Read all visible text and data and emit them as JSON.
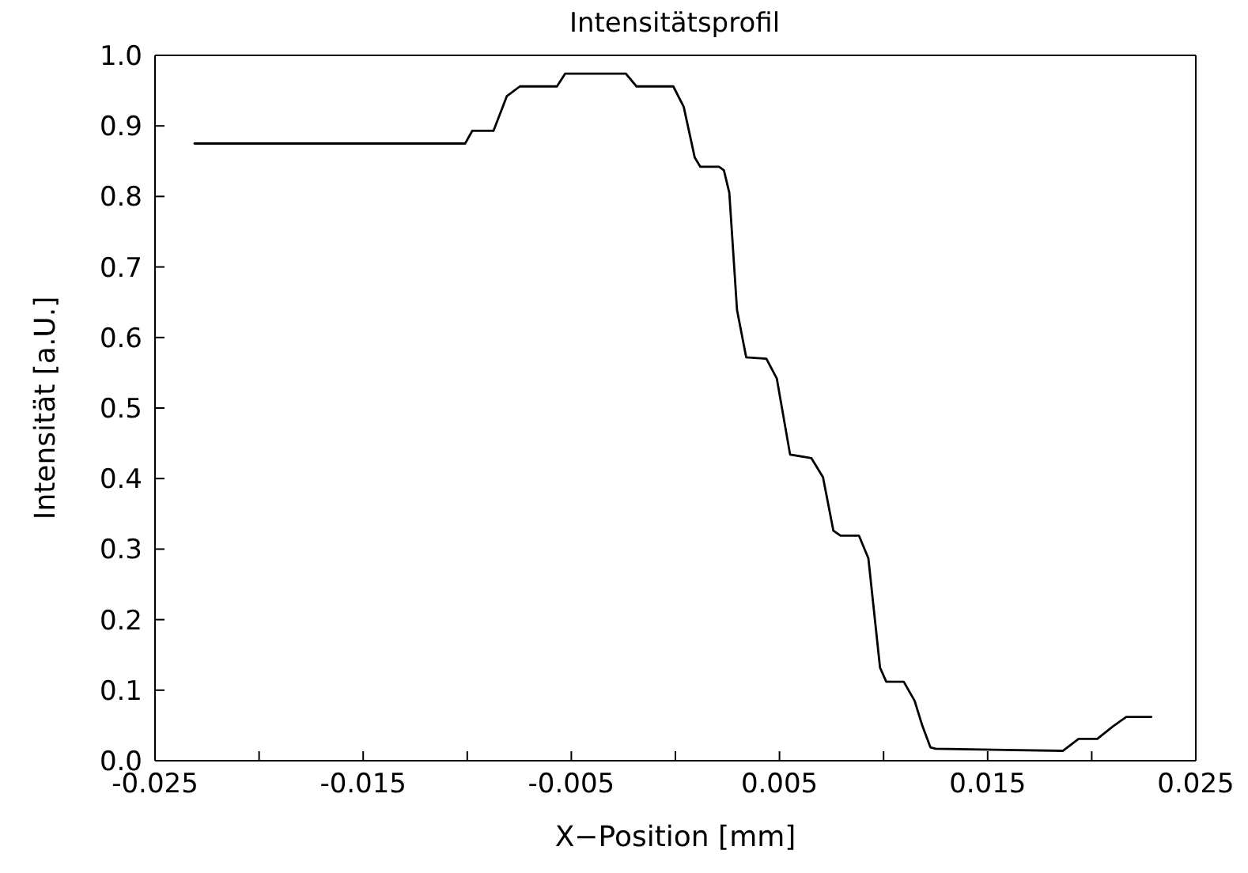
{
  "chart_data": {
    "type": "line",
    "title": "Intensitätsprofil",
    "xlabel": "X−Position [mm]",
    "ylabel": "Intensität [a.U.]",
    "xlim": [
      -0.025,
      0.025
    ],
    "xticks": [
      -0.025,
      {
        "value": -0.02,
        "label": null
      },
      -0.015,
      {
        "value": -0.01,
        "label": null
      },
      -0.005,
      {
        "value": 0,
        "label": null
      },
      0.005,
      {
        "value": 0.01,
        "label": null
      },
      0.015,
      {
        "value": 0.02,
        "label": null
      },
      0.025
    ],
    "ylim": [
      0,
      1
    ],
    "yticks": [
      {
        "value": 0,
        "label": "0.0"
      },
      0.1,
      0.2,
      0.3,
      0.4,
      0.5,
      0.6,
      0.7,
      0.8,
      0.9,
      {
        "value": 1,
        "label": "1.0"
      }
    ],
    "grid": false,
    "legend": false,
    "marker": "none",
    "line_style": "solid",
    "series": [
      {
        "color": "#000000",
        "x": [
          -0.0231,
          -0.0101,
          -0.00976,
          -0.00874,
          -0.0081,
          -0.00747,
          -0.00569,
          -0.0053,
          -0.00238,
          -0.00187,
          -0.0001,
          0.0004,
          0.00093,
          0.0012,
          0.0021,
          0.00233,
          0.00259,
          0.00296,
          0.0034,
          0.00437,
          0.00487,
          0.00551,
          0.00653,
          0.00709,
          0.00759,
          0.00793,
          0.00882,
          0.00927,
          0.00983,
          0.01013,
          0.01097,
          0.01149,
          0.01187,
          0.01225,
          0.0125,
          0.01861,
          0.01937,
          0.02027,
          0.02103,
          0.02166,
          0.02286
        ],
        "values": [
          0.875,
          0.875,
          0.893,
          0.893,
          0.942,
          0.956,
          0.956,
          0.974,
          0.974,
          0.956,
          0.956,
          0.927,
          0.855,
          0.842,
          0.842,
          0.837,
          0.805,
          0.639,
          0.572,
          0.57,
          0.542,
          0.434,
          0.429,
          0.402,
          0.326,
          0.319,
          0.319,
          0.287,
          0.132,
          0.112,
          0.112,
          0.085,
          0.049,
          0.019,
          0.017,
          0.014,
          0.031,
          0.031,
          0.049,
          0.062,
          0.062
        ]
      }
    ]
  }
}
